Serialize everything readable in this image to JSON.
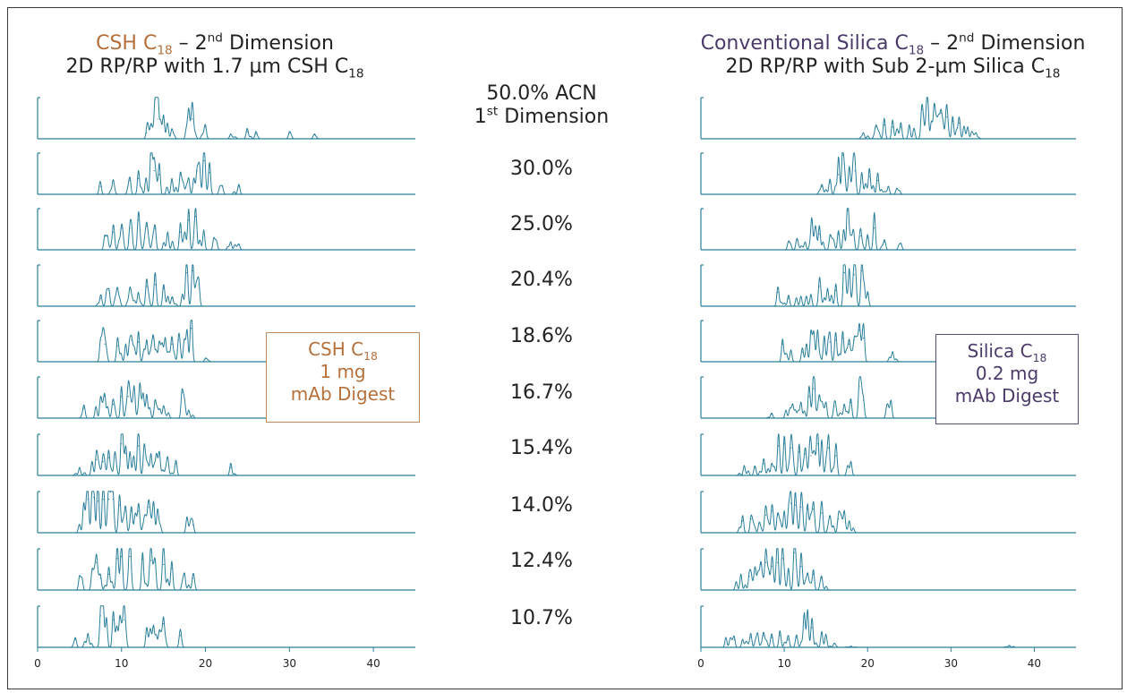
{
  "titles": {
    "left": {
      "name": "CSH C",
      "name_sub": "18",
      "dash": " – 2",
      "dash_sup": "nd",
      "dim": " Dimension",
      "line2": "2D RP/RP with 1.7 µm CSH C",
      "line2_sub": "18"
    },
    "right": {
      "name": "Conventional Silica C",
      "name_sub": "18",
      "dash": " – 2",
      "dash_sup": "nd",
      "dim": " Dimension",
      "line2": "2D RP/RP with Sub 2-µm Silica C",
      "line2_sub": "18"
    }
  },
  "center": {
    "first_label": "50.0% ACN",
    "first_dim": "1",
    "first_dim_sup": "st",
    "first_dim_tail": " Dimension",
    "rows": [
      "30.0%",
      "25.0%",
      "20.4%",
      "18.6%",
      "16.7%",
      "15.4%",
      "14.0%",
      "12.4%",
      "10.7%"
    ]
  },
  "boxes": {
    "left": {
      "line1": "CSH C",
      "line1_sub": "18",
      "line2": "1 mg",
      "line3": "mAb Digest"
    },
    "right": {
      "line1": "Silica C",
      "line1_sub": "18",
      "line2": "0.2 mg",
      "line3": "mAb Digest"
    }
  },
  "colors": {
    "trace": "#2a7f9a",
    "axis": "#2a7f9a",
    "csh_brand": "#b5703b",
    "silica_brand": "#4b3a6a",
    "frame": "#3a3a3a"
  },
  "chart_data": [
    {
      "type": "line",
      "title": "CSH C18 – 2nd Dimension",
      "xlim": [
        0,
        45
      ],
      "xticks": [
        0,
        10,
        20,
        30,
        40
      ],
      "row_labels": [
        "50.0%",
        "30.0%",
        "25.0%",
        "20.4%",
        "18.6%",
        "16.7%",
        "15.4%",
        "14.0%",
        "12.4%",
        "10.7%"
      ],
      "peaks": [
        [
          [
            13.0,
            0.15
          ],
          [
            13.5,
            0.35
          ],
          [
            14.0,
            1.0
          ],
          [
            14.3,
            0.5
          ],
          [
            15.0,
            0.6
          ],
          [
            16.0,
            0.25
          ],
          [
            18.0,
            0.75
          ],
          [
            18.4,
            0.5
          ],
          [
            20.0,
            0.3
          ],
          [
            23,
            0.12
          ],
          [
            25,
            0.18
          ],
          [
            26,
            0.12
          ],
          [
            30,
            0.15
          ],
          [
            33,
            0.1
          ]
        ],
        [
          [
            7.5,
            0.2
          ],
          [
            9.0,
            0.35
          ],
          [
            11.0,
            0.35
          ],
          [
            12.0,
            0.4
          ],
          [
            13.5,
            1.0
          ],
          [
            13.9,
            0.6
          ],
          [
            14.5,
            0.5
          ],
          [
            16.0,
            0.4
          ],
          [
            17.0,
            0.5
          ],
          [
            18.0,
            0.4
          ],
          [
            19.0,
            0.6
          ],
          [
            19.8,
            0.85
          ],
          [
            20.5,
            0.55
          ],
          [
            22,
            0.2
          ],
          [
            24,
            0.2
          ]
        ],
        [
          [
            8.0,
            0.35
          ],
          [
            9.0,
            0.45
          ],
          [
            10.0,
            0.55
          ],
          [
            11.0,
            0.55
          ],
          [
            12.0,
            0.75
          ],
          [
            13.0,
            0.6
          ],
          [
            14.0,
            0.55
          ],
          [
            15.5,
            0.45
          ],
          [
            17.0,
            0.45
          ],
          [
            18.0,
            0.75
          ],
          [
            18.8,
            0.85
          ],
          [
            19.8,
            0.5
          ],
          [
            21,
            0.3
          ],
          [
            23,
            0.2
          ],
          [
            24,
            0.12
          ]
        ],
        [
          [
            7.5,
            0.2
          ],
          [
            8.5,
            0.4
          ],
          [
            9.5,
            0.45
          ],
          [
            11.0,
            0.45
          ],
          [
            12.0,
            0.35
          ],
          [
            13.0,
            0.5
          ],
          [
            14.0,
            0.55
          ],
          [
            15.0,
            0.45
          ],
          [
            16.0,
            0.2
          ],
          [
            17.8,
            0.85
          ],
          [
            18.5,
            0.9
          ],
          [
            19.2,
            0.55
          ]
        ],
        [
          [
            7.5,
            0.55
          ],
          [
            8.0,
            0.45
          ],
          [
            9.5,
            0.4
          ],
          [
            10.5,
            0.45
          ],
          [
            11.2,
            0.55
          ],
          [
            12.0,
            0.5
          ],
          [
            13.0,
            0.55
          ],
          [
            13.8,
            0.6
          ],
          [
            14.5,
            0.5
          ],
          [
            15.2,
            0.6
          ],
          [
            16.0,
            0.45
          ],
          [
            16.8,
            0.55
          ],
          [
            17.8,
            0.8
          ],
          [
            18.3,
            0.85
          ],
          [
            20,
            0.08
          ]
        ],
        [
          [
            5.5,
            0.25
          ],
          [
            7.5,
            0.5
          ],
          [
            8.0,
            0.55
          ],
          [
            9.0,
            0.35
          ],
          [
            10.0,
            0.55
          ],
          [
            10.8,
            0.55
          ],
          [
            11.5,
            0.8
          ],
          [
            12.2,
            0.85
          ],
          [
            13.0,
            0.6
          ],
          [
            14.0,
            0.45
          ],
          [
            15.0,
            0.3
          ],
          [
            17.2,
            0.65
          ],
          [
            18,
            0.2
          ]
        ],
        [
          [
            5.0,
            0.2
          ],
          [
            6.5,
            0.3
          ],
          [
            7.0,
            0.4
          ],
          [
            7.8,
            0.35
          ],
          [
            8.5,
            0.45
          ],
          [
            9.2,
            0.55
          ],
          [
            10.0,
            0.8
          ],
          [
            10.5,
            0.55
          ],
          [
            11.0,
            0.6
          ],
          [
            12.0,
            0.75
          ],
          [
            12.7,
            0.75
          ],
          [
            13.5,
            0.55
          ],
          [
            14.5,
            0.6
          ],
          [
            15.5,
            0.45
          ],
          [
            16.5,
            0.3
          ],
          [
            23.0,
            0.2
          ]
        ],
        [
          [
            5.5,
            0.75
          ],
          [
            6.0,
            0.85
          ],
          [
            6.7,
            0.9
          ],
          [
            7.2,
            0.8
          ],
          [
            7.8,
            0.85
          ],
          [
            8.5,
            0.85
          ],
          [
            9.0,
            0.85
          ],
          [
            9.8,
            0.7
          ],
          [
            10.5,
            0.55
          ],
          [
            11.2,
            0.55
          ],
          [
            12.0,
            0.55
          ],
          [
            13.2,
            0.65
          ],
          [
            13.8,
            0.7
          ],
          [
            14.3,
            0.6
          ],
          [
            17.8,
            0.4
          ],
          [
            18.5,
            0.2
          ]
        ],
        [
          [
            5.0,
            0.35
          ],
          [
            6.5,
            0.5
          ],
          [
            7.0,
            0.7
          ],
          [
            7.5,
            0.3
          ],
          [
            8.5,
            0.4
          ],
          [
            9.5,
            0.8
          ],
          [
            10.0,
            0.85
          ],
          [
            11.0,
            0.85
          ],
          [
            12.5,
            0.8
          ],
          [
            13.5,
            0.75
          ],
          [
            14.0,
            0.7
          ],
          [
            15.0,
            0.65
          ],
          [
            16.0,
            0.55
          ],
          [
            17.5,
            0.4
          ],
          [
            18.5,
            0.3
          ]
        ],
        [
          [
            4.5,
            0.2
          ],
          [
            6.0,
            0.35
          ],
          [
            7.5,
            0.8
          ],
          [
            8.2,
            0.75
          ],
          [
            9.0,
            0.7
          ],
          [
            9.8,
            0.75
          ],
          [
            10.3,
            0.7
          ],
          [
            13.0,
            0.5
          ],
          [
            13.8,
            0.55
          ],
          [
            14.5,
            0.4
          ],
          [
            15.0,
            0.6
          ],
          [
            17,
            0.3
          ]
        ]
      ]
    },
    {
      "type": "line",
      "title": "Conventional Silica C18 – 2nd Dimension",
      "xlim": [
        0,
        45
      ],
      "xticks": [
        0,
        10,
        20,
        30,
        40
      ],
      "row_labels": [
        "50.0%",
        "30.0%",
        "25.0%",
        "20.4%",
        "18.6%",
        "16.7%",
        "15.4%",
        "14.0%",
        "12.4%",
        "10.7%"
      ],
      "peaks": [
        [
          [
            19.5,
            0.15
          ],
          [
            21,
            0.3
          ],
          [
            22,
            0.35
          ],
          [
            23,
            0.3
          ],
          [
            24,
            0.3
          ],
          [
            25,
            0.35
          ],
          [
            26.5,
            0.75
          ],
          [
            27.2,
            0.95
          ],
          [
            28,
            0.85
          ],
          [
            28.8,
            0.65
          ],
          [
            29.5,
            0.55
          ],
          [
            30.2,
            0.45
          ],
          [
            31,
            0.4
          ],
          [
            32,
            0.3
          ],
          [
            33,
            0.15
          ]
        ],
        [
          [
            14.5,
            0.2
          ],
          [
            15.5,
            0.3
          ],
          [
            16.5,
            0.5
          ],
          [
            17.0,
            1.0
          ],
          [
            17.8,
            0.7
          ],
          [
            18.5,
            0.6
          ],
          [
            19.3,
            0.55
          ],
          [
            20.2,
            0.45
          ],
          [
            21.2,
            0.35
          ],
          [
            22.5,
            0.2
          ],
          [
            23.5,
            0.15
          ]
        ],
        [
          [
            10.5,
            0.2
          ],
          [
            11.5,
            0.25
          ],
          [
            12.5,
            0.2
          ],
          [
            13.3,
            0.8
          ],
          [
            14.2,
            0.4
          ],
          [
            15.5,
            0.35
          ],
          [
            16.5,
            0.4
          ],
          [
            17.6,
            1.0
          ],
          [
            18.3,
            0.5
          ],
          [
            19.2,
            0.35
          ],
          [
            20.0,
            0.3
          ],
          [
            20.8,
            0.55
          ],
          [
            22,
            0.2
          ],
          [
            24,
            0.15
          ]
        ],
        [
          [
            9.2,
            0.35
          ],
          [
            10.5,
            0.2
          ],
          [
            12,
            0.25
          ],
          [
            13.2,
            0.3
          ],
          [
            14.2,
            0.5
          ],
          [
            15.2,
            0.45
          ],
          [
            16.2,
            0.4
          ],
          [
            17.2,
            0.85
          ],
          [
            17.8,
            0.95
          ],
          [
            18.4,
            0.8
          ],
          [
            19.3,
            0.9
          ],
          [
            20,
            0.3
          ]
        ],
        [
          [
            9.8,
            0.45
          ],
          [
            10.8,
            0.3
          ],
          [
            12.2,
            0.25
          ],
          [
            13.2,
            0.75
          ],
          [
            14.0,
            0.8
          ],
          [
            14.8,
            0.65
          ],
          [
            15.5,
            0.5
          ],
          [
            16.2,
            0.55
          ],
          [
            17.0,
            0.6
          ],
          [
            17.8,
            0.45
          ],
          [
            18.4,
            0.55
          ],
          [
            19.0,
            0.8
          ],
          [
            19.5,
            0.6
          ],
          [
            23.0,
            0.25
          ]
        ],
        [
          [
            8.5,
            0.1
          ],
          [
            10.2,
            0.2
          ],
          [
            11.0,
            0.35
          ],
          [
            12.0,
            0.4
          ],
          [
            13.0,
            0.55
          ],
          [
            13.5,
            0.75
          ],
          [
            14.2,
            0.55
          ],
          [
            15.0,
            0.4
          ],
          [
            16.0,
            0.3
          ],
          [
            17.2,
            0.35
          ],
          [
            18.0,
            0.4
          ],
          [
            19.0,
            0.8
          ],
          [
            19.5,
            0.45
          ],
          [
            22.8,
            0.45
          ]
        ],
        [
          [
            5.2,
            0.25
          ],
          [
            6.5,
            0.2
          ],
          [
            7.5,
            0.3
          ],
          [
            8.5,
            0.3
          ],
          [
            9.3,
            0.75
          ],
          [
            10.0,
            0.8
          ],
          [
            10.8,
            0.7
          ],
          [
            11.8,
            0.6
          ],
          [
            12.5,
            0.55
          ],
          [
            13.2,
            0.5
          ],
          [
            14.0,
            0.8
          ],
          [
            14.5,
            0.9
          ],
          [
            15.3,
            0.7
          ],
          [
            16.2,
            0.5
          ],
          [
            18.0,
            0.35
          ]
        ],
        [
          [
            5.0,
            0.3
          ],
          [
            6.0,
            0.35
          ],
          [
            7.0,
            0.25
          ],
          [
            7.8,
            0.45
          ],
          [
            8.5,
            0.55
          ],
          [
            9.2,
            0.45
          ],
          [
            10.0,
            0.55
          ],
          [
            10.8,
            0.75
          ],
          [
            11.3,
            0.7
          ],
          [
            12.0,
            0.65
          ],
          [
            12.8,
            0.6
          ],
          [
            13.5,
            0.6
          ],
          [
            14.5,
            0.5
          ],
          [
            15.5,
            0.4
          ],
          [
            16.5,
            0.35
          ],
          [
            17.2,
            0.55
          ],
          [
            17.8,
            0.3
          ]
        ],
        [
          [
            4.8,
            0.4
          ],
          [
            5.8,
            0.35
          ],
          [
            6.5,
            0.55
          ],
          [
            7.2,
            0.65
          ],
          [
            7.8,
            0.7
          ],
          [
            8.5,
            0.6
          ],
          [
            9.2,
            0.7
          ],
          [
            9.8,
            0.8
          ],
          [
            10.5,
            0.55
          ],
          [
            11.2,
            0.95
          ],
          [
            12.0,
            0.6
          ],
          [
            12.8,
            0.4
          ],
          [
            13.5,
            0.4
          ],
          [
            14.5,
            0.3
          ]
        ],
        [
          [
            3.0,
            0.25
          ],
          [
            4.0,
            0.2
          ],
          [
            5.0,
            0.2
          ],
          [
            6.0,
            0.25
          ],
          [
            6.8,
            0.35
          ],
          [
            7.5,
            0.3
          ],
          [
            8.5,
            0.25
          ],
          [
            9.5,
            0.3
          ],
          [
            10.5,
            0.2
          ],
          [
            11.5,
            0.25
          ],
          [
            12.8,
            0.95
          ],
          [
            13.3,
            0.5
          ],
          [
            14.5,
            0.4
          ],
          [
            16,
            0.1
          ],
          [
            18,
            0.03
          ],
          [
            37,
            0.05
          ]
        ]
      ]
    }
  ]
}
